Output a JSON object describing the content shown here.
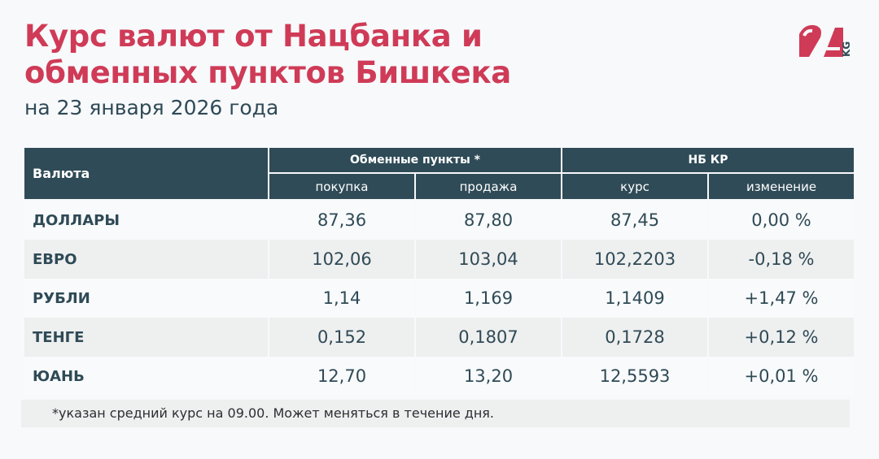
{
  "header": {
    "title_line1": "Курс валют от Нацбанка и",
    "title_line2": "обменных пунктов Бишкека",
    "subtitle": "на 23 января 2026 года",
    "logo_text": "24 KG"
  },
  "colors": {
    "accent": "#cf3b57",
    "header_bg": "#2f4b57",
    "text": "#2f4a56"
  },
  "table": {
    "currency_header": "Валюта",
    "group1": "Обменные пункты *",
    "group2": "НБ КР",
    "columns": [
      "покупка",
      "продажа",
      "курс",
      "изменение"
    ],
    "rows": [
      {
        "name": "ДОЛЛАРЫ",
        "buy": "87,36",
        "sell": "87,80",
        "rate": "87,45",
        "change": "0,00 %"
      },
      {
        "name": "ЕВРО",
        "buy": "102,06",
        "sell": "103,04",
        "rate": "102,2203",
        "change": "-0,18 %"
      },
      {
        "name": "РУБЛИ",
        "buy": "1,14",
        "sell": "1,169",
        "rate": "1,1409",
        "change": "+1,47 %"
      },
      {
        "name": "ТЕНГЕ",
        "buy": "0,152",
        "sell": "0,1807",
        "rate": "0,1728",
        "change": "+0,12 %"
      },
      {
        "name": "ЮАНЬ",
        "buy": "12,70",
        "sell": "13,20",
        "rate": "12,5593",
        "change": "+0,01 %"
      }
    ]
  },
  "footnote": "*указан средний курс на 09.00. Может меняться в течение дня."
}
